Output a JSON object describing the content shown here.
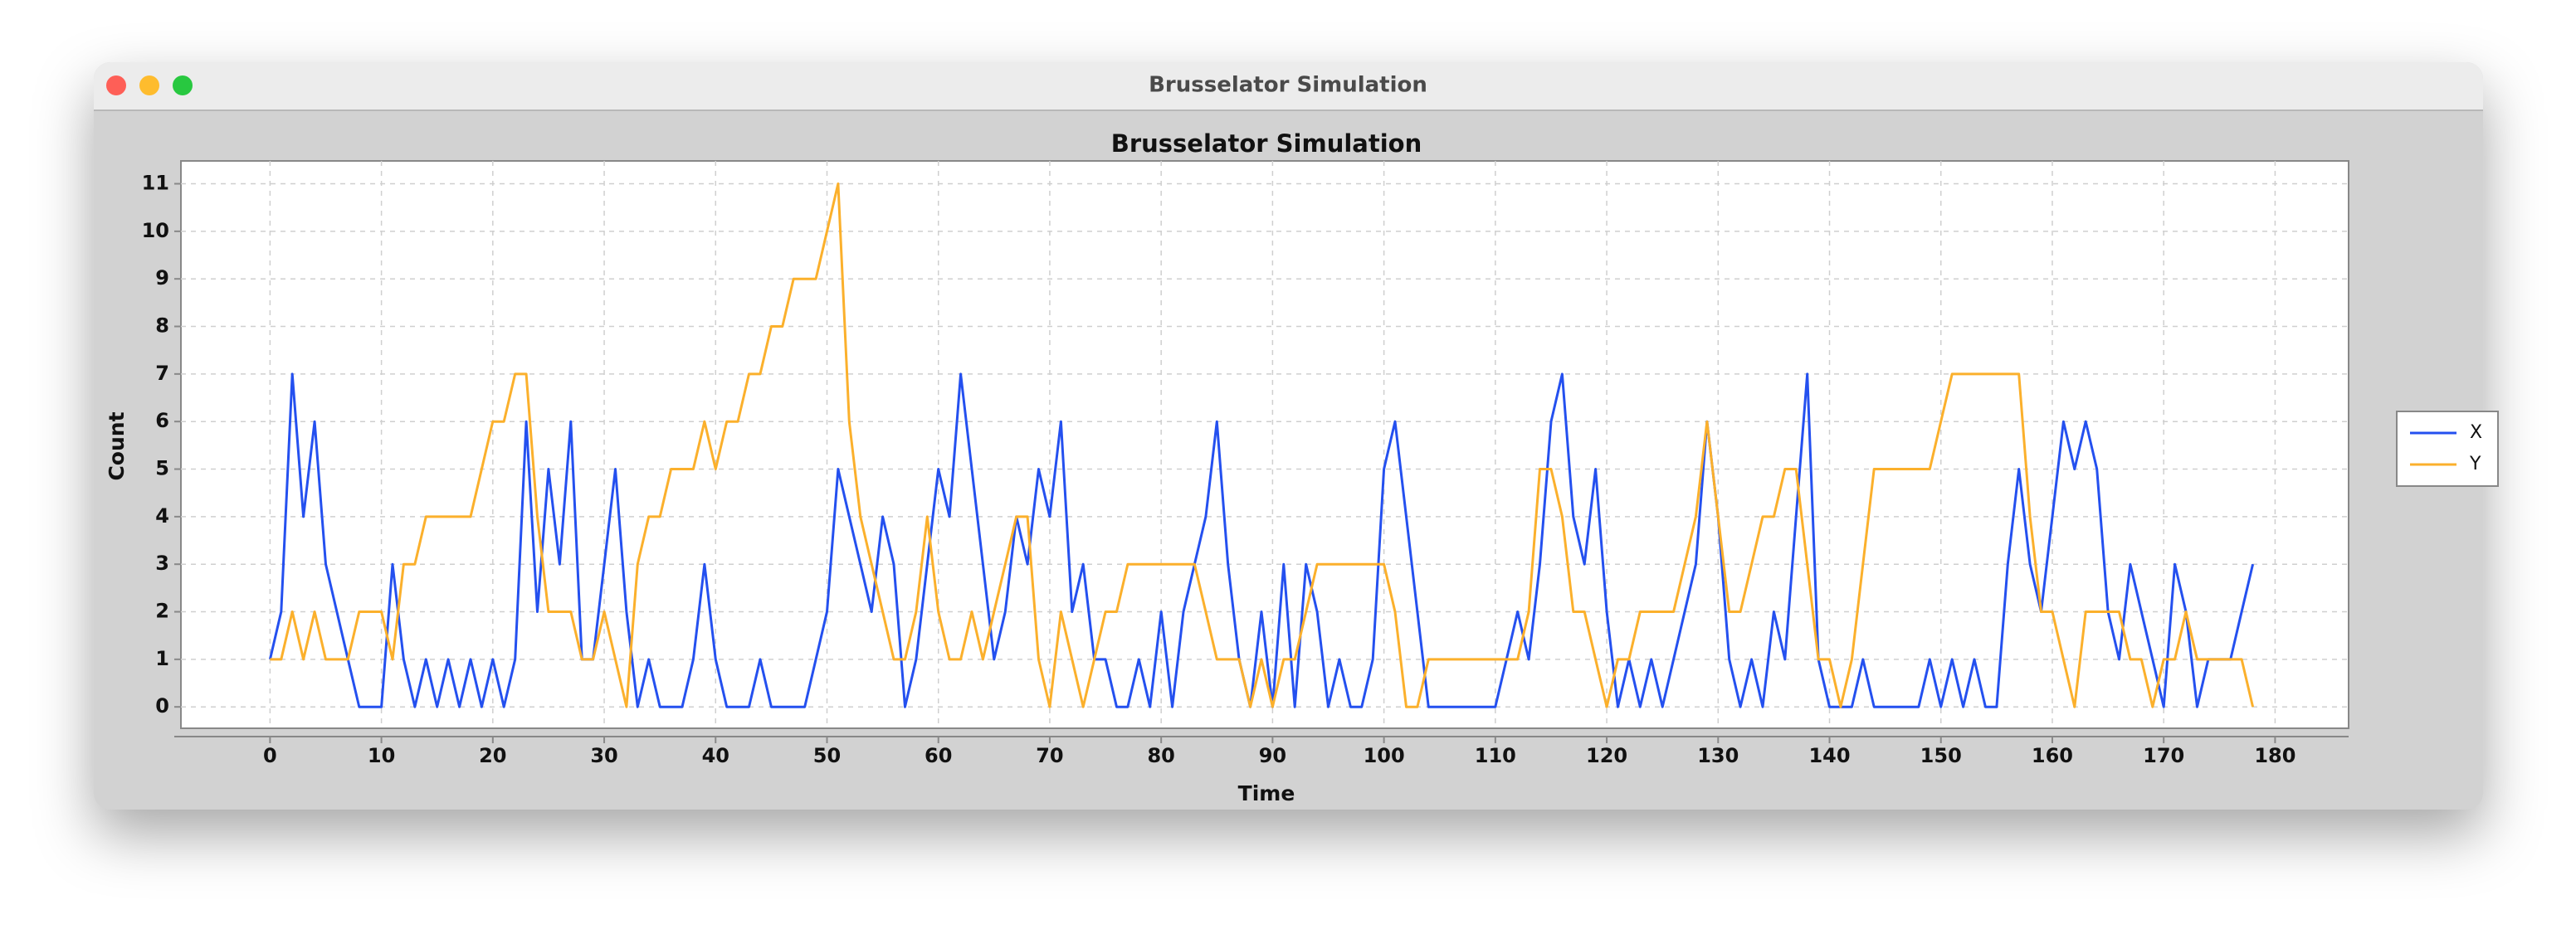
{
  "window": {
    "title": "Brusselator Simulation"
  },
  "chart_data": {
    "type": "line",
    "title": "Brusselator Simulation",
    "x_label": "Time",
    "y_label": "Count",
    "x": [
      0,
      1,
      2,
      3,
      4,
      5,
      6,
      7,
      8,
      9,
      10,
      11,
      12,
      13,
      14,
      15,
      16,
      17,
      18,
      19,
      20,
      21,
      22,
      23,
      24,
      25,
      26,
      27,
      28,
      29,
      30,
      31,
      32,
      33,
      34,
      35,
      36,
      37,
      38,
      39,
      40,
      41,
      42,
      43,
      44,
      45,
      46,
      47,
      48,
      49,
      50,
      51,
      52,
      53,
      54,
      55,
      56,
      57,
      58,
      59,
      60,
      61,
      62,
      63,
      64,
      65,
      66,
      67,
      68,
      69,
      70,
      71,
      72,
      73,
      74,
      75,
      76,
      77,
      78,
      79,
      80,
      81,
      82,
      83,
      84,
      85,
      86,
      87,
      88,
      89,
      90,
      91,
      92,
      93,
      94,
      95,
      96,
      97,
      98,
      99,
      100,
      101,
      102,
      103,
      104,
      105,
      106,
      107,
      108,
      109,
      110,
      111,
      112,
      113,
      114,
      115,
      116,
      117,
      118,
      119,
      120,
      121,
      122,
      123,
      124,
      125,
      126,
      127,
      128,
      129,
      130,
      131,
      132,
      133,
      134,
      135,
      136,
      137,
      138,
      139,
      140,
      141,
      142,
      143,
      144,
      145,
      146,
      147,
      148,
      149,
      150,
      151,
      152,
      153,
      154,
      155,
      156,
      157,
      158,
      159,
      160,
      161,
      162,
      163,
      164,
      165,
      166,
      167,
      168,
      169,
      170,
      171,
      172,
      173,
      174,
      175,
      176,
      177,
      178
    ],
    "series": [
      {
        "name": "X",
        "color": "#2450ef",
        "values": [
          1,
          2,
          7,
          4,
          6,
          3,
          2,
          1,
          0,
          0,
          0,
          3,
          1,
          0,
          1,
          0,
          1,
          0,
          1,
          0,
          1,
          0,
          1,
          6,
          2,
          5,
          3,
          6,
          1,
          1,
          3,
          5,
          2,
          0,
          1,
          0,
          0,
          0,
          1,
          3,
          1,
          0,
          0,
          0,
          1,
          0,
          0,
          0,
          0,
          1,
          2,
          5,
          4,
          3,
          2,
          4,
          3,
          0,
          1,
          3,
          5,
          4,
          7,
          5,
          3,
          1,
          2,
          4,
          3,
          5,
          4,
          6,
          2,
          3,
          1,
          1,
          0,
          0,
          1,
          0,
          2,
          0,
          2,
          3,
          4,
          6,
          3,
          1,
          0,
          2,
          0,
          3,
          0,
          3,
          2,
          0,
          1,
          0,
          0,
          1,
          5,
          6,
          4,
          2,
          0,
          0,
          0,
          0,
          0,
          0,
          0,
          1,
          2,
          1,
          3,
          6,
          7,
          4,
          3,
          5,
          2,
          0,
          1,
          0,
          1,
          0,
          1,
          2,
          3,
          6,
          4,
          1,
          0,
          1,
          0,
          2,
          1,
          4,
          7,
          1,
          0,
          0,
          0,
          1,
          0,
          0,
          0,
          0,
          0,
          1,
          0,
          1,
          0,
          1,
          0,
          0,
          3,
          5,
          3,
          2,
          4,
          6,
          5,
          6,
          5,
          2,
          1,
          3,
          2,
          1,
          0,
          3,
          2,
          0,
          1,
          1,
          1,
          2,
          3
        ]
      },
      {
        "name": "Y",
        "color": "#fbb02c",
        "values": [
          1,
          1,
          2,
          1,
          2,
          1,
          1,
          1,
          2,
          2,
          2,
          1,
          3,
          3,
          4,
          4,
          4,
          4,
          4,
          5,
          6,
          6,
          7,
          7,
          4,
          2,
          2,
          2,
          1,
          1,
          2,
          1,
          0,
          3,
          4,
          4,
          5,
          5,
          5,
          6,
          5,
          6,
          6,
          7,
          7,
          8,
          8,
          9,
          9,
          9,
          10,
          11,
          6,
          4,
          3,
          2,
          1,
          1,
          2,
          4,
          2,
          1,
          1,
          2,
          1,
          2,
          3,
          4,
          4,
          1,
          0,
          2,
          1,
          0,
          1,
          2,
          2,
          3,
          3,
          3,
          3,
          3,
          3,
          3,
          2,
          1,
          1,
          1,
          0,
          1,
          0,
          1,
          1,
          2,
          3,
          3,
          3,
          3,
          3,
          3,
          3,
          2,
          0,
          0,
          1,
          1,
          1,
          1,
          1,
          1,
          1,
          1,
          1,
          2,
          5,
          5,
          4,
          2,
          2,
          1,
          0,
          1,
          1,
          2,
          2,
          2,
          2,
          3,
          4,
          6,
          4,
          2,
          2,
          3,
          4,
          4,
          5,
          5,
          3,
          1,
          1,
          0,
          1,
          3,
          5,
          5,
          5,
          5,
          5,
          5,
          6,
          7,
          7,
          7,
          7,
          7,
          7,
          7,
          4,
          2,
          2,
          1,
          0,
          2,
          2,
          2,
          2,
          1,
          1,
          0,
          1,
          1,
          2,
          1,
          1,
          1,
          1,
          1,
          0
        ]
      }
    ],
    "xlim": [
      -8,
      186.6
    ],
    "ylim": [
      -0.45,
      11.48
    ],
    "xticks": [
      0,
      10,
      20,
      30,
      40,
      50,
      60,
      70,
      80,
      90,
      100,
      110,
      120,
      130,
      140,
      150,
      160,
      170,
      180
    ],
    "yticks": [
      0,
      1,
      2,
      3,
      4,
      5,
      6,
      7,
      8,
      9,
      10,
      11
    ],
    "grid": true,
    "legend": "right"
  }
}
